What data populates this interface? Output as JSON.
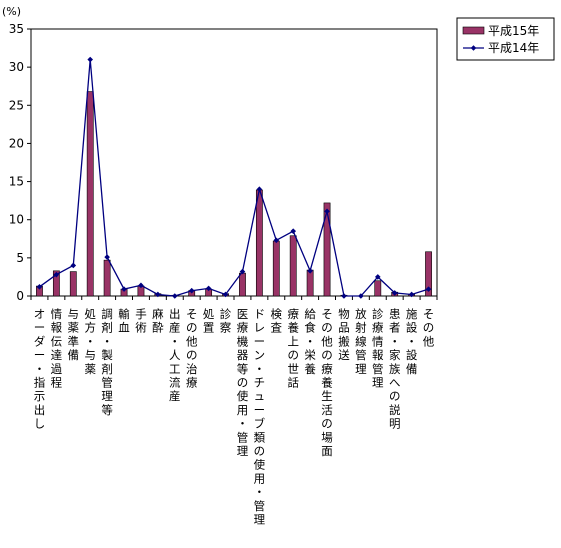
{
  "chart_data": {
    "type": "bar",
    "unit_label": "(%)",
    "y_ticks": [
      "0",
      "5",
      "10",
      "15",
      "20",
      "25",
      "30",
      "35"
    ],
    "ylim": [
      0,
      35
    ],
    "grid": false,
    "legend_position": "top-right",
    "categories": [
      "オーダー・指示出し",
      "情報伝達過程",
      "与薬準備",
      "処方・与薬",
      "調剤・製剤管理等",
      "輸血",
      "手術",
      "麻酔",
      "出産・人工流産",
      "その他の治療",
      "処置",
      "診察",
      "医療機器等の使用・管理",
      "ドレーン・チューブ類の使用・管理",
      "検査",
      "療養上の世話",
      "給食・栄養",
      "その他の療養生活の場面",
      "物品搬送",
      "放射線管理",
      "診療情報管理",
      "患者・家族への説明",
      "施設・設備",
      "その他"
    ],
    "series": [
      {
        "name": "平成15年",
        "kind": "bar",
        "color": "#993366",
        "values": [
          1.3,
          3.3,
          3.2,
          26.8,
          4.7,
          0.9,
          1.3,
          0.3,
          0.1,
          0.7,
          0.9,
          0.3,
          3.0,
          13.9,
          7.2,
          7.9,
          3.4,
          12.2,
          0.1,
          0.0,
          2.0,
          0.5,
          0.2,
          5.8
        ]
      },
      {
        "name": "平成14年",
        "kind": "line",
        "color": "#000080",
        "values": [
          1.2,
          2.8,
          4.0,
          31.0,
          5.1,
          0.9,
          1.4,
          0.2,
          0.0,
          0.7,
          1.0,
          0.2,
          3.2,
          14.0,
          7.3,
          8.5,
          3.3,
          11.1,
          0.0,
          0.0,
          2.5,
          0.4,
          0.2,
          0.9
        ]
      }
    ]
  }
}
